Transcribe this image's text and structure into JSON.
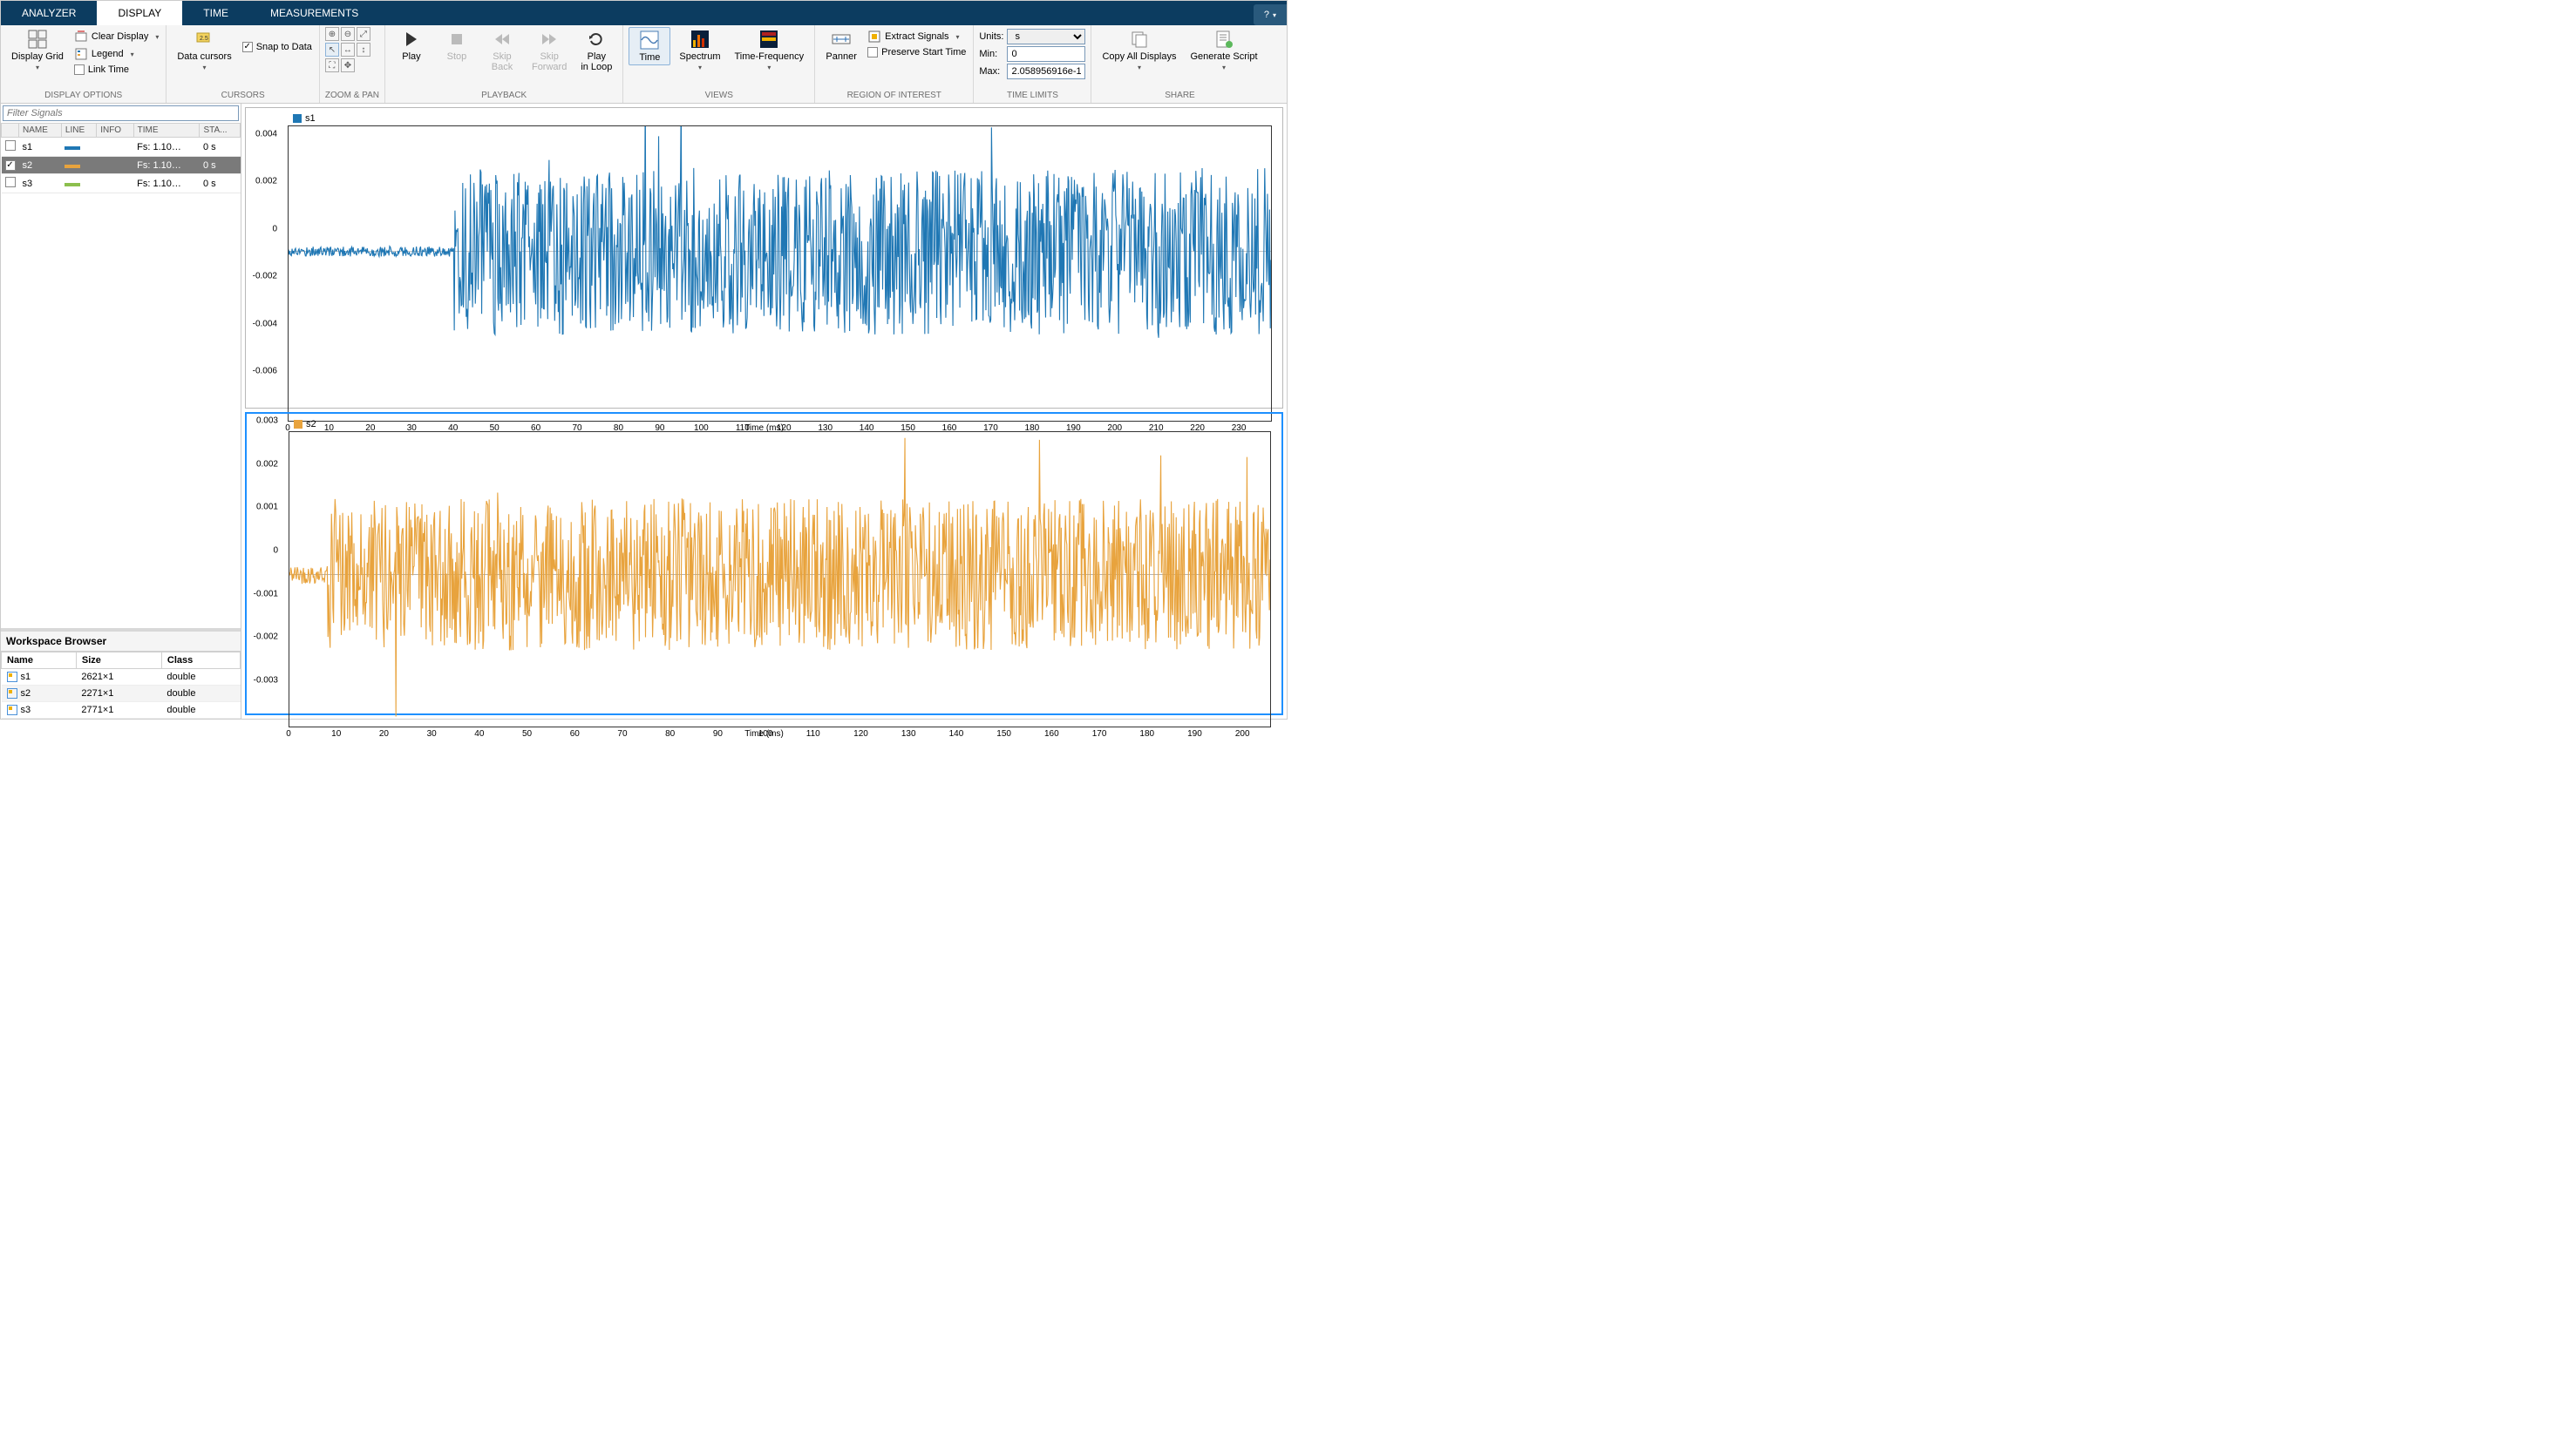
{
  "tabs": [
    "ANALYZER",
    "DISPLAY",
    "TIME",
    "MEASUREMENTS"
  ],
  "active_tab": "DISPLAY",
  "help_label": "?",
  "ribbon": {
    "display_options": {
      "label": "DISPLAY OPTIONS",
      "display_grid": "Display Grid",
      "clear_display": "Clear Display",
      "legend": "Legend",
      "link_time": "Link Time"
    },
    "cursors": {
      "label": "CURSORS",
      "data_cursors": "Data cursors",
      "snap": "Snap to Data"
    },
    "zoom_pan": {
      "label": "ZOOM & PAN"
    },
    "playback": {
      "label": "PLAYBACK",
      "play": "Play",
      "stop": "Stop",
      "skip_back": "Skip\nBack",
      "skip_fwd": "Skip\nForward",
      "loop": "Play\nin Loop"
    },
    "views": {
      "label": "VIEWS",
      "time": "Time",
      "spectrum": "Spectrum",
      "time_freq": "Time-Frequency"
    },
    "roi": {
      "label": "REGION OF INTEREST",
      "panner": "Panner",
      "extract": "Extract Signals",
      "preserve": "Preserve Start Time"
    },
    "time_limits": {
      "label": "TIME LIMITS",
      "units_lbl": "Units:",
      "units_val": "s",
      "min_lbl": "Min:",
      "min_val": "0",
      "max_lbl": "Max:",
      "max_val": "2.058956916e-1"
    },
    "share": {
      "label": "SHARE",
      "copy": "Copy All Displays",
      "script": "Generate Script"
    }
  },
  "filter_placeholder": "Filter Signals",
  "sig_cols": [
    "NAME",
    "LINE",
    "INFO",
    "TIME",
    "STA..."
  ],
  "signals": [
    {
      "name": "s1",
      "color": "#1f77b4",
      "info": "",
      "time": "Fs: 1.10…",
      "start": "0 s",
      "checked": false,
      "selected": false
    },
    {
      "name": "s2",
      "color": "#e8a33d",
      "info": "",
      "time": "Fs: 1.10…",
      "start": "0 s",
      "checked": true,
      "selected": true
    },
    {
      "name": "s3",
      "color": "#8cbf4d",
      "info": "",
      "time": "Fs: 1.10…",
      "start": "0 s",
      "checked": false,
      "selected": false
    }
  ],
  "workspace": {
    "title": "Workspace Browser",
    "cols": [
      "Name",
      "Size",
      "Class"
    ],
    "rows": [
      {
        "name": "s1",
        "size": "2621×1",
        "class": "double"
      },
      {
        "name": "s2",
        "size": "2271×1",
        "class": "double"
      },
      {
        "name": "s3",
        "size": "2771×1",
        "class": "double"
      }
    ]
  },
  "plot1": {
    "legend": "s1",
    "color": "#1f77b4",
    "xlabel": "Time (ms)",
    "xlim": [
      0,
      238
    ],
    "xtick_step": 10,
    "ylim": [
      -0.0065,
      0.0048
    ],
    "yticks": [
      -0.006,
      -0.004,
      -0.002,
      0,
      0.002,
      0.004
    ],
    "flat_until_ms": 40,
    "noise_amp_flat": 0.0002,
    "noise_amp_main": 0.0032,
    "spike_amp": 0.005,
    "seed": 17
  },
  "plot2": {
    "legend": "s2",
    "color": "#e8a33d",
    "selected": true,
    "xlabel": "Time (ms)",
    "xlim": [
      0,
      206
    ],
    "xtick_step": 10,
    "ylim": [
      -0.0032,
      0.003
    ],
    "yticks": [
      -0.003,
      -0.002,
      -0.001,
      0,
      0.001,
      0.002,
      0.003
    ],
    "flat_until_ms": 8,
    "noise_amp_flat": 0.0002,
    "noise_amp_main": 0.0016,
    "spike_amp": 0.0026,
    "seed": 42
  }
}
